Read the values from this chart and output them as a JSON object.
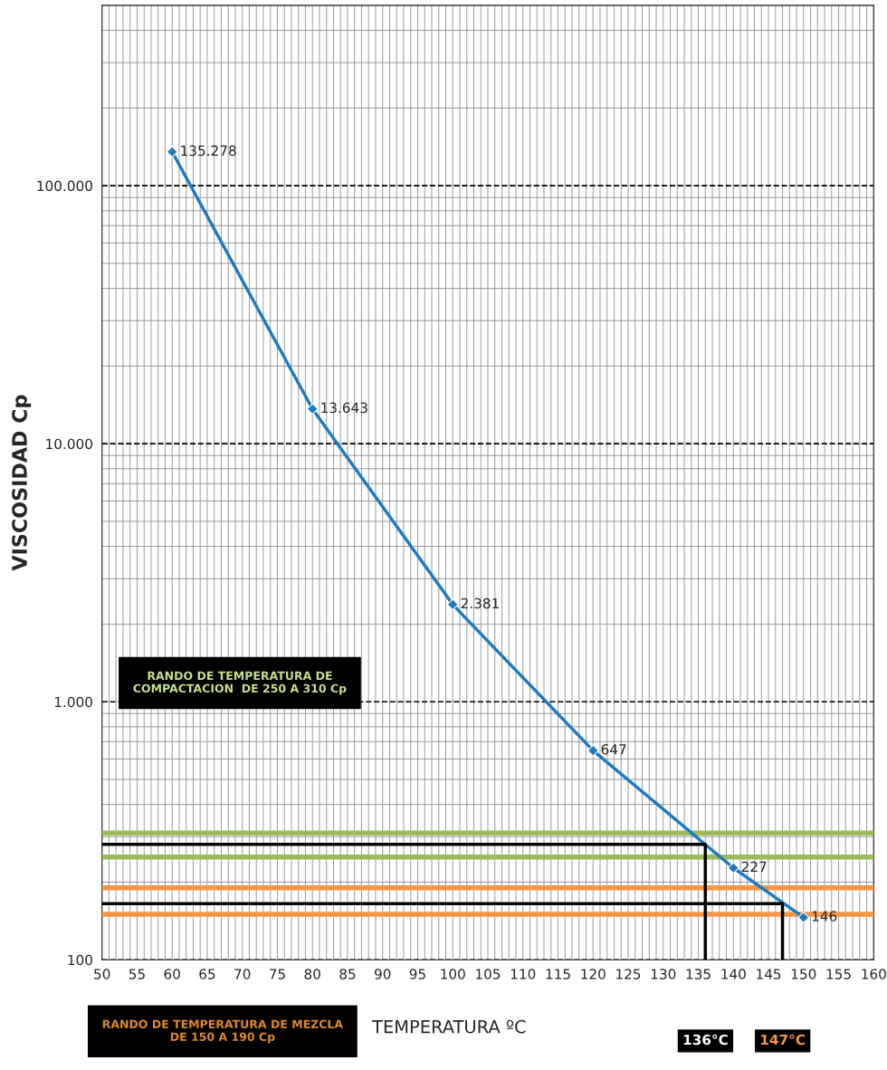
{
  "chart_data": {
    "type": "line",
    "xlabel": "TEMPERATURA ºC",
    "ylabel": "VISCOSIDAD Cp",
    "x": [
      60,
      80,
      100,
      120,
      140,
      150
    ],
    "series": [
      {
        "color": "#1f7bc1",
        "values": [
          135278,
          13643,
          2381,
          647,
          227,
          146
        ],
        "value_labels": [
          "135.278",
          "13.643",
          "2.381",
          "647",
          "227",
          "146"
        ]
      },
      {
        "type": "line",
        "color": "#000000",
        "marker": "none",
        "x": [
          50,
          136,
          136
        ],
        "values": [
          280,
          280,
          100
        ]
      },
      {
        "type": "line",
        "color": "#000000",
        "marker": "none",
        "x": [
          50,
          147,
          147
        ],
        "values": [
          165,
          165,
          100
        ]
      }
    ],
    "marker": "diamond",
    "line_style": "solid",
    "log": "y",
    "grid": true,
    "xlim": [
      50,
      160
    ],
    "xticks": [
      50,
      55,
      60,
      65,
      70,
      75,
      80,
      85,
      90,
      95,
      100,
      105,
      110,
      115,
      120,
      125,
      130,
      135,
      140,
      145,
      150,
      155,
      160
    ],
    "ylim": [
      100,
      500000
    ],
    "yticks": [
      100,
      {
        "value": 1000,
        "label": "1.000"
      },
      {
        "value": 10000,
        "label": "10.000"
      },
      {
        "value": 100000,
        "label": "100.000"
      }
    ],
    "ref_lines": [
      {
        "axis": "y",
        "value": 310,
        "color": "#9bbb59"
      },
      {
        "axis": "y",
        "value": 250,
        "color": "#9bbb59"
      },
      {
        "axis": "y",
        "value": 190,
        "color": "#f79646"
      },
      {
        "axis": "y",
        "value": 150,
        "color": "#f79646"
      }
    ],
    "annotations": [
      "RANDO DE TEMPERATURA DE\nCOMPACTACION  DE 250 A 310 Cp",
      "RANDO DE TEMPERATURA DE MEZCLA\nDE 150 A 190 Cp",
      "136°C",
      "147°C"
    ]
  }
}
